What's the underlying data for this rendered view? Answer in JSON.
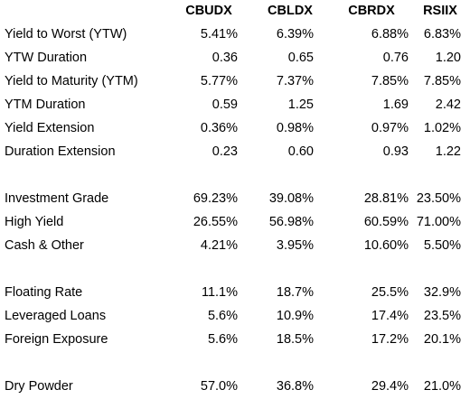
{
  "table": {
    "columns": [
      "CBUDX",
      "CBLDX",
      "CBRDX",
      "RSIIX"
    ],
    "groups": [
      {
        "rows": [
          {
            "label": "Yield to Worst (YTW)",
            "cells": [
              "5.41%",
              "6.39%",
              "6.88%",
              "6.83%"
            ]
          },
          {
            "label": "YTW Duration",
            "cells": [
              "0.36",
              "0.65",
              "0.76",
              "1.20"
            ]
          },
          {
            "label": "Yield to Maturity (YTM)",
            "cells": [
              "5.77%",
              "7.37%",
              "7.85%",
              "7.85%"
            ]
          },
          {
            "label": "YTM Duration",
            "cells": [
              "0.59",
              "1.25",
              "1.69",
              "2.42"
            ]
          },
          {
            "label": "Yield Extension",
            "cells": [
              "0.36%",
              "0.98%",
              "0.97%",
              "1.02%"
            ]
          },
          {
            "label": "Duration Extension",
            "cells": [
              "0.23",
              "0.60",
              "0.93",
              "1.22"
            ]
          }
        ]
      },
      {
        "rows": [
          {
            "label": "Investment Grade",
            "cells": [
              "69.23%",
              "39.08%",
              "28.81%",
              "23.50%"
            ]
          },
          {
            "label": "High Yield",
            "cells": [
              "26.55%",
              "56.98%",
              "60.59%",
              "71.00%"
            ]
          },
          {
            "label": "Cash & Other",
            "cells": [
              "4.21%",
              "3.95%",
              "10.60%",
              "5.50%"
            ]
          }
        ]
      },
      {
        "rows": [
          {
            "label": "Floating Rate",
            "cells": [
              "11.1%",
              "18.7%",
              "25.5%",
              "32.9%"
            ]
          },
          {
            "label": "Leveraged Loans",
            "cells": [
              "5.6%",
              "10.9%",
              "17.4%",
              "23.5%"
            ]
          },
          {
            "label": "Foreign Exposure",
            "cells": [
              "5.6%",
              "18.5%",
              "17.2%",
              "20.1%"
            ]
          }
        ]
      },
      {
        "rows": [
          {
            "label": "Dry Powder",
            "cells": [
              "57.0%",
              "36.8%",
              "29.4%",
              "21.0%"
            ]
          }
        ]
      }
    ]
  }
}
